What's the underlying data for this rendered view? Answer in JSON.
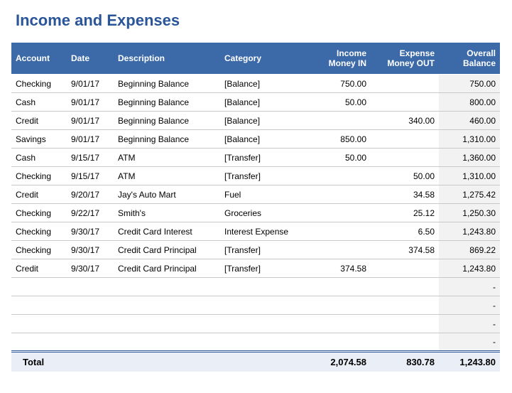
{
  "title": "Income and Expenses",
  "colors": {
    "title": "#2a5599",
    "header_bg": "#3c6aa8",
    "header_fg": "#ffffff",
    "row_border": "#c9c9c9",
    "balance_bg": "#f2f2f2",
    "total_bg": "#eaeef6",
    "total_border": "#2a5599"
  },
  "columns": [
    {
      "key": "account",
      "label": "Account",
      "align": "left"
    },
    {
      "key": "date",
      "label": "Date",
      "align": "left"
    },
    {
      "key": "description",
      "label": "Description",
      "align": "left"
    },
    {
      "key": "category",
      "label": "Category",
      "align": "left"
    },
    {
      "key": "money_in",
      "label": "Income\nMoney IN",
      "align": "right"
    },
    {
      "key": "money_out",
      "label": "Expense\nMoney OUT",
      "align": "right"
    },
    {
      "key": "balance",
      "label": "Overall\nBalance",
      "align": "right"
    }
  ],
  "rows": [
    {
      "account": "Checking",
      "date": "9/01/17",
      "description": "Beginning Balance",
      "category": "[Balance]",
      "money_in": "750.00",
      "money_out": "",
      "balance": "750.00"
    },
    {
      "account": "Cash",
      "date": "9/01/17",
      "description": "Beginning Balance",
      "category": "[Balance]",
      "money_in": "50.00",
      "money_out": "",
      "balance": "800.00"
    },
    {
      "account": "Credit",
      "date": "9/01/17",
      "description": "Beginning Balance",
      "category": "[Balance]",
      "money_in": "",
      "money_out": "340.00",
      "balance": "460.00"
    },
    {
      "account": "Savings",
      "date": "9/01/17",
      "description": "Beginning Balance",
      "category": "[Balance]",
      "money_in": "850.00",
      "money_out": "",
      "balance": "1,310.00"
    },
    {
      "account": "Cash",
      "date": "9/15/17",
      "description": "ATM",
      "category": "[Transfer]",
      "money_in": "50.00",
      "money_out": "",
      "balance": "1,360.00"
    },
    {
      "account": "Checking",
      "date": "9/15/17",
      "description": "ATM",
      "category": "[Transfer]",
      "money_in": "",
      "money_out": "50.00",
      "balance": "1,310.00"
    },
    {
      "account": "Credit",
      "date": "9/20/17",
      "description": "Jay's Auto Mart",
      "category": "Fuel",
      "money_in": "",
      "money_out": "34.58",
      "balance": "1,275.42"
    },
    {
      "account": "Checking",
      "date": "9/22/17",
      "description": "Smith's",
      "category": "Groceries",
      "money_in": "",
      "money_out": "25.12",
      "balance": "1,250.30"
    },
    {
      "account": "Checking",
      "date": "9/30/17",
      "description": "Credit Card Interest",
      "category": "Interest Expense",
      "money_in": "",
      "money_out": "6.50",
      "balance": "1,243.80"
    },
    {
      "account": "Checking",
      "date": "9/30/17",
      "description": "Credit Card Principal",
      "category": "[Transfer]",
      "money_in": "",
      "money_out": "374.58",
      "balance": "869.22"
    },
    {
      "account": "Credit",
      "date": "9/30/17",
      "description": "Credit Card Principal",
      "category": "[Transfer]",
      "money_in": "374.58",
      "money_out": "",
      "balance": "1,243.80"
    },
    {
      "account": "",
      "date": "",
      "description": "",
      "category": "",
      "money_in": "",
      "money_out": "",
      "balance": "-"
    },
    {
      "account": "",
      "date": "",
      "description": "",
      "category": "",
      "money_in": "",
      "money_out": "",
      "balance": "-"
    },
    {
      "account": "",
      "date": "",
      "description": "",
      "category": "",
      "money_in": "",
      "money_out": "",
      "balance": "-"
    },
    {
      "account": "",
      "date": "",
      "description": "",
      "category": "",
      "money_in": "",
      "money_out": "",
      "balance": "-"
    }
  ],
  "totals": {
    "label": "Total",
    "money_in": "2,074.58",
    "money_out": "830.78",
    "balance": "1,243.80"
  }
}
